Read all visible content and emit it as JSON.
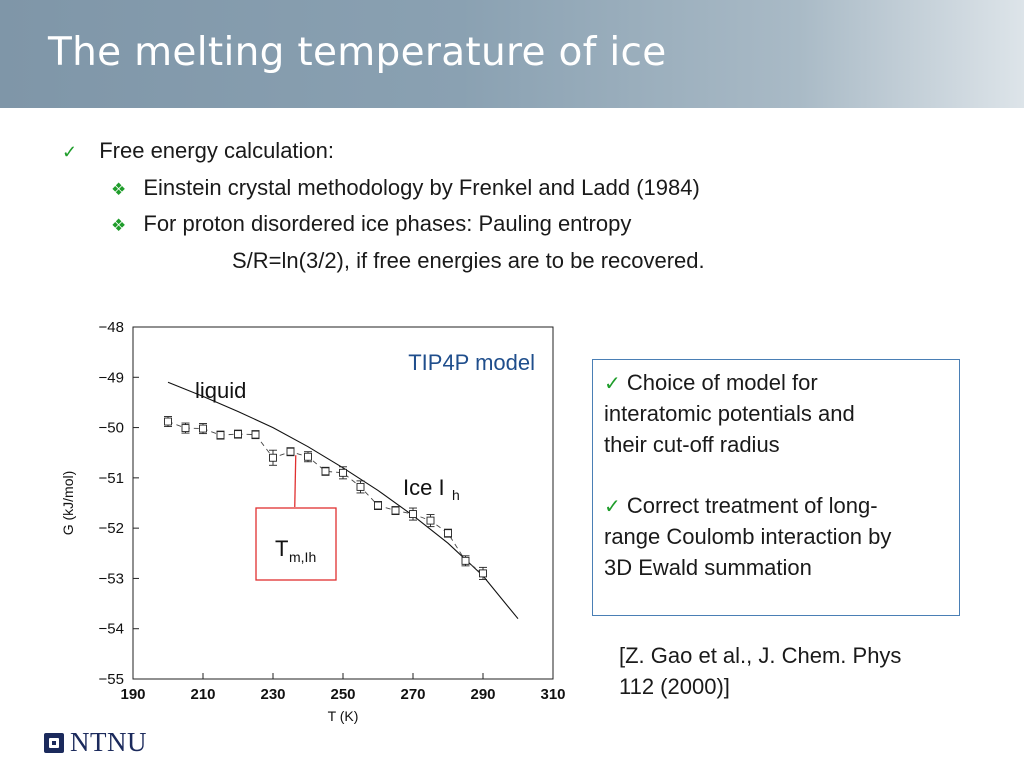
{
  "slide": {
    "title": "The melting temperature of ice",
    "bullets": [
      {
        "text": "Free energy calculation:",
        "level": 1,
        "icon": "checkmark-icon"
      },
      {
        "text": "Einstein crystal methodology by Frenkel and Ladd (1984)",
        "level": 2,
        "icon": "diamond-bullet-icon"
      },
      {
        "text": "For proton disordered ice phases: Pauling entropy",
        "level": 2,
        "icon": "diamond-bullet-icon"
      },
      {
        "text": "S/R=ln(3/2), if free energies are to be recovered.",
        "level": 3
      }
    ],
    "info_box": {
      "lines": [
        "Choice of model for",
        "interatomic potentials and",
        "their cut-off radius",
        "Correct treatment of long-",
        "range Coulomb interaction by",
        "3D Ewald summation"
      ]
    },
    "reference": [
      "[Z. Gao et al., J. Chem. Phys",
      "112 (2000)]"
    ],
    "logo_text": "NTNU",
    "colors": {
      "accent_green": "#1f9d2b",
      "box_border": "#4a7fb5",
      "tm_box": "#e03030",
      "logo_navy": "#1b2a5c"
    }
  },
  "chart_data": {
    "type": "scatter",
    "title": "TIP4P model",
    "xlabel": "T (K)",
    "ylabel": "G (kJ/mol)",
    "xlim": [
      190,
      310
    ],
    "ylim": [
      -55,
      -48
    ],
    "xticks": [
      190,
      210,
      230,
      250,
      270,
      290,
      310
    ],
    "yticks": [
      -48,
      -49,
      -50,
      -51,
      -52,
      -53,
      -54,
      -55
    ],
    "series": [
      {
        "name": "liquid",
        "style": "line",
        "points": [
          [
            200,
            -49.1
          ],
          [
            210,
            -49.38
          ],
          [
            220,
            -49.68
          ],
          [
            230,
            -50.0
          ],
          [
            240,
            -50.38
          ],
          [
            250,
            -50.8
          ],
          [
            260,
            -51.25
          ],
          [
            270,
            -51.75
          ],
          [
            280,
            -52.3
          ],
          [
            290,
            -52.95
          ],
          [
            300,
            -53.8
          ]
        ]
      },
      {
        "name": "Ice Ih",
        "style": "dashed-line-with-errorbars",
        "points": [
          {
            "x": 200,
            "y": -49.88,
            "err": 0.1
          },
          {
            "x": 205,
            "y": -50.01,
            "err": 0.1
          },
          {
            "x": 210,
            "y": -50.02,
            "err": 0.1
          },
          {
            "x": 215,
            "y": -50.15,
            "err": 0.05
          },
          {
            "x": 220,
            "y": -50.13,
            "err": 0.05
          },
          {
            "x": 225,
            "y": -50.14,
            "err": 0.08
          },
          {
            "x": 230,
            "y": -50.6,
            "err": 0.15
          },
          {
            "x": 235,
            "y": -50.48,
            "err": 0.05
          },
          {
            "x": 240,
            "y": -50.58,
            "err": 0.1
          },
          {
            "x": 245,
            "y": -50.87,
            "err": 0.08
          },
          {
            "x": 250,
            "y": -50.9,
            "err": 0.12
          },
          {
            "x": 255,
            "y": -51.18,
            "err": 0.12
          },
          {
            "x": 260,
            "y": -51.55,
            "err": 0.08
          },
          {
            "x": 265,
            "y": -51.65,
            "err": 0.05
          },
          {
            "x": 270,
            "y": -51.72,
            "err": 0.12
          },
          {
            "x": 275,
            "y": -51.85,
            "err": 0.12
          },
          {
            "x": 280,
            "y": -52.1,
            "err": 0.05
          },
          {
            "x": 285,
            "y": -52.65,
            "err": 0.1
          },
          {
            "x": 290,
            "y": -52.9,
            "err": 0.12
          }
        ]
      }
    ],
    "annotations": {
      "liquid_label": "liquid",
      "ice_label_main": "Ice I",
      "ice_label_sub": "h",
      "tm_label_main": "T",
      "tm_label_sub": "m,Ih",
      "tm_x": 236.5
    }
  }
}
